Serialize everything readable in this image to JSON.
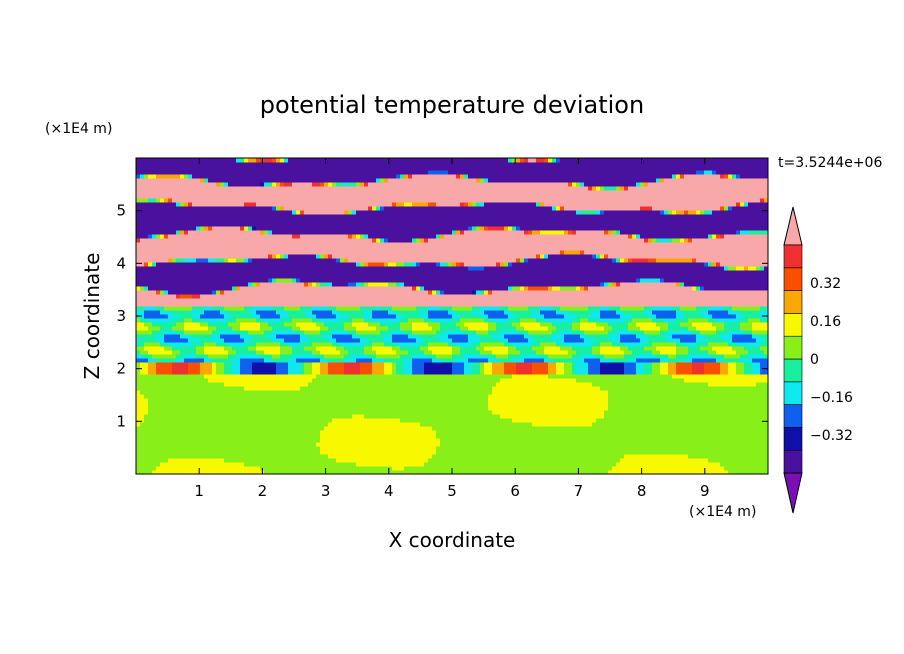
{
  "chart_data": {
    "type": "heatmap",
    "title": "potential temperature deviation",
    "xlabel": "X coordinate",
    "ylabel": "Z coordinate",
    "x_unit": "(×1E4 m)",
    "y_unit": "(×1E4 m)",
    "time_label": "t=3.5244e+06",
    "xlim": [
      0,
      10
    ],
    "ylim": [
      0,
      6
    ],
    "x_ticks": [
      1,
      2,
      3,
      4,
      5,
      6,
      7,
      8,
      9
    ],
    "y_ticks": [
      1,
      2,
      3,
      4,
      5
    ],
    "colorbar": {
      "min": -0.48,
      "max": 0.48,
      "step": 0.08,
      "extend": "both",
      "tick_labels": [
        "0.32",
        "0.16",
        "0",
        "−0.16",
        "−0.32"
      ],
      "tick_values": [
        0.32,
        0.16,
        0,
        -0.16,
        -0.32
      ],
      "colors": [
        "#7a0fb4",
        "#4a109e",
        "#1010a8",
        "#1060f0",
        "#10e8f0",
        "#18f0a0",
        "#88f018",
        "#f8f800",
        "#f8a800",
        "#f85000",
        "#f03030",
        "#f8a8a8"
      ]
    },
    "field_layers": [
      {
        "z_range": [
          0,
          1.9
        ],
        "pattern": "mixed near-zero",
        "levels": [
          0.02,
          -0.02,
          0.06
        ]
      },
      {
        "z_range": [
          1.9,
          2.1
        ],
        "pattern": "thin band",
        "levels": [
          -0.35,
          0.3,
          0.1
        ]
      },
      {
        "z_range": [
          2.1,
          3.2
        ],
        "pattern": "horizontal stripes",
        "levels": [
          -0.1,
          -0.2,
          0.02,
          0.1
        ]
      },
      {
        "z_range": [
          3.2,
          6
        ],
        "pattern": "alternating extremes",
        "levels": [
          0.4,
          -0.45,
          0.2,
          -0.3
        ]
      }
    ]
  }
}
